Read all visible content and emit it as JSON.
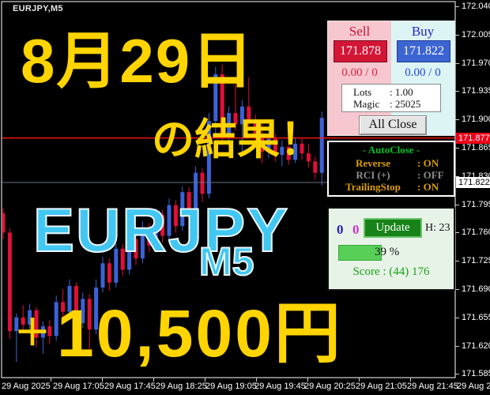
{
  "window": {
    "symbol_label": "EURJPY,M5"
  },
  "overlay": {
    "date_text": "8月29日",
    "result_text": "の結果！",
    "pair_text": "EURJPY",
    "timeframe_text": "M5",
    "profit_plus": "＋",
    "profit_amount": "10,500円",
    "yellow": "#ffd400",
    "blue": "#41c7f2"
  },
  "trade_panel": {
    "sell_label": "Sell",
    "buy_label": "Buy",
    "sell_price": "171.878",
    "buy_price": "171.822",
    "sell_stats": "0.00 / 0",
    "buy_stats": "0.00 / 0",
    "lots_label": "Lots",
    "lots_value": ": 1.00",
    "magic_label": "Magic",
    "magic_value": ": 25025",
    "all_close_label": "All Close"
  },
  "autoclose_panel": {
    "title": "- AutoClose -",
    "rows": [
      {
        "label": "Reverse",
        "value": ": ON",
        "state": "on"
      },
      {
        "label": "RCI (+)",
        "value": ": OFF",
        "state": "off"
      },
      {
        "label": "TrailingStop",
        "value": ": ON",
        "state": "on"
      }
    ]
  },
  "update_panel": {
    "count_blue": "0",
    "count_pink": "0",
    "update_button": "Update",
    "hours_text": "H: 23",
    "progress_pct": 39,
    "progress_text": "39 %",
    "score_text": "Score : (44) 176"
  },
  "price_axis": {
    "labels": [
      "172.040",
      "172.005",
      "171.970",
      "171.935",
      "171.900",
      "171.865",
      "171.830",
      "171.795",
      "171.760",
      "171.725",
      "171.690",
      "171.655",
      "171.620",
      "171.585"
    ],
    "ask_label": "171.877",
    "bid_label": "171.822"
  },
  "time_axis": {
    "labels": [
      "29 Aug 2025",
      "29 Aug 17:05",
      "29 Aug 17:45",
      "29 Aug 18:25",
      "29 Aug 19:05",
      "29 Aug 19:45",
      "29 Aug 20:25",
      "29 Aug 21:05",
      "29 Aug 21:45",
      "29 Aug 22:25"
    ]
  },
  "chart_data": {
    "type": "candlestick",
    "title": "EURJPY M5 candlestick chart, 29 Aug 2025",
    "symbol": "EURJPY",
    "timeframe": "M5",
    "ask": 171.877,
    "bid": 171.822,
    "y_axis": {
      "max": 172.04,
      "min": 171.585,
      "label_step": 0.035,
      "grid": false
    },
    "x_axis_labels": [
      "29 Aug 2025",
      "29 Aug 17:05",
      "29 Aug 17:45",
      "29 Aug 18:25",
      "29 Aug 19:05",
      "29 Aug 19:45",
      "29 Aug 20:25",
      "29 Aug 21:05",
      "29 Aug 21:45",
      "29 Aug 22:25"
    ],
    "colors": {
      "up": "#3b63d8",
      "down": "#e01038",
      "ask_line": "#ff1414",
      "bid_line": "#6a7080",
      "background": "#000000"
    },
    "ohlc_format": [
      "open",
      "high",
      "low",
      "close"
    ],
    "candles": [
      [
        171.784,
        171.79,
        171.752,
        171.76
      ],
      [
        171.76,
        171.765,
        171.628,
        171.638
      ],
      [
        171.638,
        171.66,
        171.6,
        171.655
      ],
      [
        171.655,
        171.67,
        171.636,
        171.646
      ],
      [
        171.646,
        171.672,
        171.64,
        171.664
      ],
      [
        171.664,
        171.668,
        171.618,
        171.63
      ],
      [
        171.63,
        171.65,
        171.61,
        171.644
      ],
      [
        171.644,
        171.652,
        171.622,
        171.632
      ],
      [
        171.632,
        171.682,
        171.626,
        171.674
      ],
      [
        171.674,
        171.69,
        171.654,
        171.662
      ],
      [
        171.662,
        171.702,
        171.656,
        171.694
      ],
      [
        171.694,
        171.698,
        171.638,
        171.648
      ],
      [
        171.648,
        171.686,
        171.642,
        171.678
      ],
      [
        171.678,
        171.684,
        171.614,
        171.64
      ],
      [
        171.64,
        171.702,
        171.634,
        171.692
      ],
      [
        171.692,
        171.73,
        171.686,
        171.722
      ],
      [
        171.722,
        171.728,
        171.688,
        171.698
      ],
      [
        171.698,
        171.746,
        171.692,
        171.74
      ],
      [
        171.74,
        171.746,
        171.706,
        171.714
      ],
      [
        171.714,
        171.76,
        171.708,
        171.752
      ],
      [
        171.752,
        171.758,
        171.72,
        171.728
      ],
      [
        171.728,
        171.774,
        171.722,
        171.766
      ],
      [
        171.766,
        171.772,
        171.736,
        171.744
      ],
      [
        171.744,
        171.79,
        171.738,
        171.782
      ],
      [
        171.782,
        171.788,
        171.748,
        171.756
      ],
      [
        171.756,
        171.802,
        171.75,
        171.794
      ],
      [
        171.794,
        171.8,
        171.76,
        171.768
      ],
      [
        171.768,
        171.817,
        171.762,
        171.81
      ],
      [
        171.81,
        171.816,
        171.776,
        171.784
      ],
      [
        171.784,
        171.842,
        171.778,
        171.834
      ],
      [
        171.834,
        171.84,
        171.798,
        171.808
      ],
      [
        171.808,
        171.908,
        171.802,
        171.898
      ],
      [
        171.898,
        171.965,
        171.88,
        171.956
      ],
      [
        171.956,
        171.968,
        171.868,
        171.88
      ],
      [
        171.88,
        171.916,
        171.866,
        171.908
      ],
      [
        171.908,
        171.944,
        171.886,
        171.894
      ],
      [
        171.894,
        171.924,
        171.858,
        171.916
      ],
      [
        171.916,
        171.952,
        171.892,
        171.9
      ],
      [
        171.9,
        171.906,
        171.872,
        171.878
      ],
      [
        171.878,
        171.898,
        171.846,
        171.86
      ],
      [
        171.86,
        171.886,
        171.852,
        171.876
      ],
      [
        171.876,
        171.882,
        171.848,
        171.856
      ],
      [
        171.856,
        171.874,
        171.842,
        171.866
      ],
      [
        171.866,
        171.872,
        171.844,
        171.85
      ],
      [
        171.85,
        171.878,
        171.846,
        171.87
      ],
      [
        171.87,
        171.876,
        171.85,
        171.858
      ],
      [
        171.858,
        171.87,
        171.84,
        171.848
      ],
      [
        171.848,
        171.854,
        171.826,
        171.834
      ],
      [
        171.834,
        171.91,
        171.818,
        171.902
      ]
    ]
  }
}
